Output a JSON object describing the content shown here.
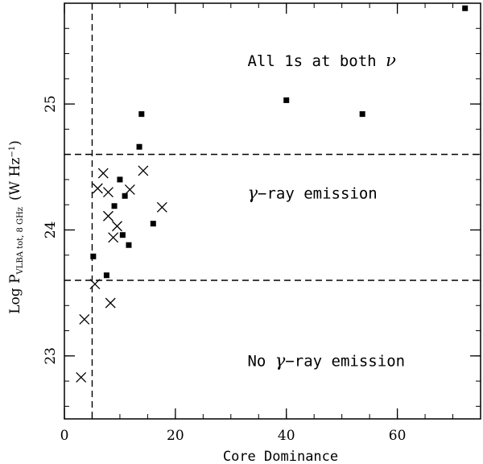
{
  "chart_data": {
    "type": "scatter",
    "xlabel": "Core Dominance",
    "ylabel": {
      "prefix": "Log P",
      "subscript": "VLBA tot, 8 GHz",
      "units": "(W Hz",
      "units_sup": "−1",
      "units_end": ")"
    },
    "xlim": [
      0,
      75
    ],
    "ylim": [
      22.5,
      25.8
    ],
    "x_ticks": [
      0,
      20,
      40,
      60
    ],
    "x_tick_labels": [
      "0",
      "20",
      "40",
      "60"
    ],
    "y_ticks": [
      23,
      24,
      25
    ],
    "y_tick_labels": [
      "23",
      "24",
      "25"
    ],
    "x_minor_step": 5,
    "y_minor_step": 0.2,
    "grid": false,
    "reference_lines": {
      "vertical_x": 5,
      "horizontal_y": [
        23.6,
        24.6
      ]
    },
    "annotations": [
      {
        "text": "All 1s at both ",
        "symbol": "ν",
        "x": 33,
        "y": 25.3
      },
      {
        "text": "−ray emission",
        "symbol": "γ",
        "symbol_first": true,
        "x": 33,
        "y": 24.25
      },
      {
        "text": "No ",
        "symbol": "γ",
        "rest": "−ray emission",
        "x": 33,
        "y": 22.92
      }
    ],
    "series": [
      {
        "marker": "square",
        "points": [
          [
            5.2,
            23.79
          ],
          [
            7.6,
            23.64
          ],
          [
            9.0,
            24.19
          ],
          [
            10.0,
            24.4
          ],
          [
            10.5,
            23.96
          ],
          [
            10.9,
            24.27
          ],
          [
            11.6,
            23.88
          ],
          [
            13.5,
            24.66
          ],
          [
            13.9,
            24.92
          ],
          [
            16.0,
            24.05
          ],
          [
            40.0,
            25.03
          ],
          [
            53.7,
            24.92
          ],
          [
            72.2,
            25.76
          ]
        ]
      },
      {
        "marker": "cross",
        "points": [
          [
            3.0,
            22.83
          ],
          [
            3.6,
            23.29
          ],
          [
            5.5,
            23.57
          ],
          [
            6.0,
            24.33
          ],
          [
            7.0,
            24.45
          ],
          [
            7.9,
            24.3
          ],
          [
            7.9,
            24.11
          ],
          [
            8.3,
            23.42
          ],
          [
            8.8,
            23.94
          ],
          [
            9.5,
            24.03
          ],
          [
            11.8,
            24.32
          ],
          [
            14.2,
            24.47
          ],
          [
            17.6,
            24.18
          ]
        ]
      }
    ]
  }
}
